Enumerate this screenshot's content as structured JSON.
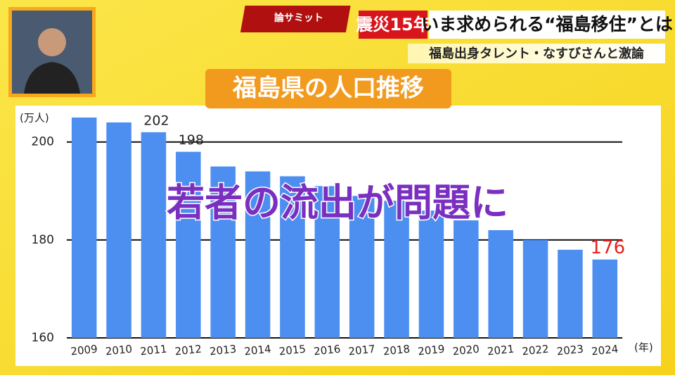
{
  "header": {
    "logo": "論サミット",
    "tag": "震災15年",
    "headline": "いま求められる“福島移住”とは",
    "subheadline": "福島出身タレント・なすびさんと激論"
  },
  "caption": "若者の流出が問題に",
  "chart_data": {
    "type": "bar",
    "title": "福島県の人口推移",
    "y_unit": "(万人)",
    "x_unit": "(年)",
    "categories": [
      "2009",
      "2010",
      "2011",
      "2012",
      "2013",
      "2014",
      "2015",
      "2016",
      "2017",
      "2018",
      "2019",
      "2020",
      "2021",
      "2022",
      "2023",
      "2024"
    ],
    "values": [
      205,
      204,
      202,
      198,
      195,
      194,
      193,
      191,
      189,
      188,
      186,
      184,
      182,
      180,
      178,
      176
    ],
    "value_labels": [
      null,
      null,
      "202",
      "198",
      null,
      null,
      null,
      null,
      null,
      null,
      null,
      null,
      null,
      null,
      null,
      "176"
    ],
    "value_label_colors": [
      null,
      null,
      "#222222",
      "#222222",
      null,
      null,
      null,
      null,
      null,
      null,
      null,
      null,
      null,
      null,
      null,
      "#e8231f"
    ],
    "color": "#4d8ff0",
    "ylim": [
      160,
      206
    ],
    "yticks": [
      160,
      180,
      200
    ],
    "grid": true
  }
}
